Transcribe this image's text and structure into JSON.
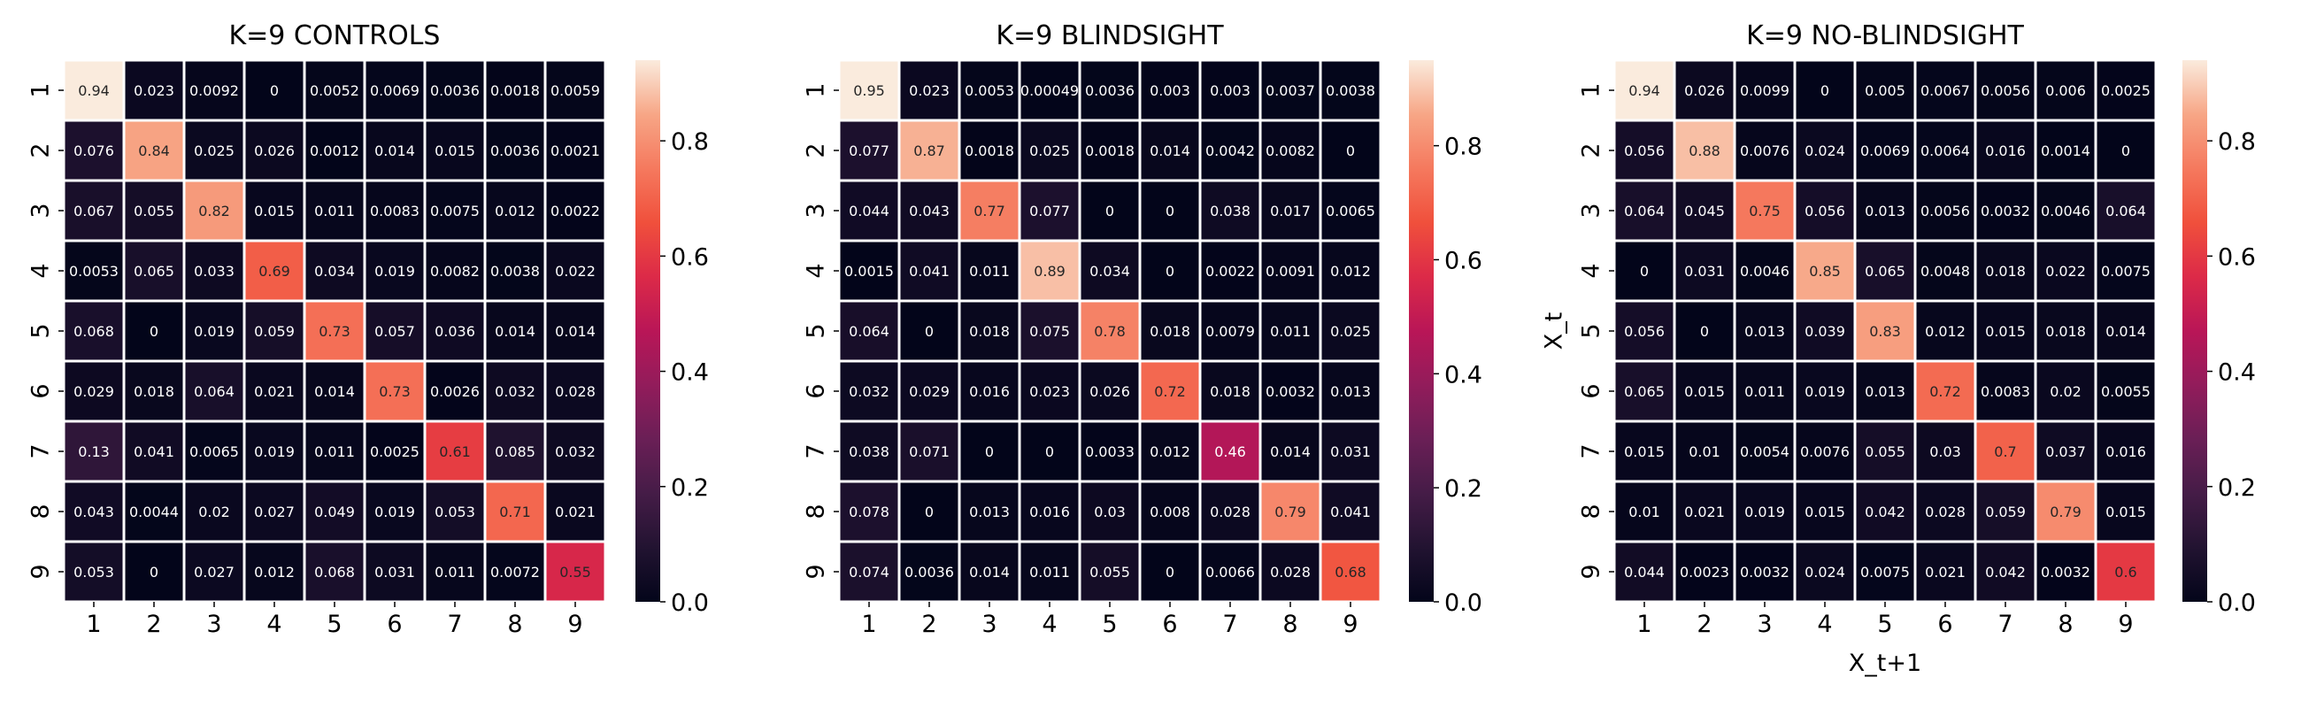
{
  "figure": {
    "background": "#ffffff",
    "colormap": "rocket"
  },
  "chart_data": [
    {
      "type": "heatmap",
      "title": "K=9 CONTROLS",
      "xlabel": "",
      "ylabel": "",
      "x_categories": [
        "1",
        "2",
        "3",
        "4",
        "5",
        "6",
        "7",
        "8",
        "9"
      ],
      "y_categories": [
        "1",
        "2",
        "3",
        "4",
        "5",
        "6",
        "7",
        "8",
        "9"
      ],
      "values": [
        [
          "0.94",
          "0.023",
          "0.0092",
          "0",
          "0.0052",
          "0.0069",
          "0.0036",
          "0.0018",
          "0.0059"
        ],
        [
          "0.076",
          "0.84",
          "0.025",
          "0.026",
          "0.0012",
          "0.014",
          "0.015",
          "0.0036",
          "0.0021"
        ],
        [
          "0.067",
          "0.055",
          "0.82",
          "0.015",
          "0.011",
          "0.0083",
          "0.0075",
          "0.012",
          "0.0022"
        ],
        [
          "0.0053",
          "0.065",
          "0.033",
          "0.69",
          "0.034",
          "0.019",
          "0.0082",
          "0.0038",
          "0.022"
        ],
        [
          "0.068",
          "0",
          "0.019",
          "0.059",
          "0.73",
          "0.057",
          "0.036",
          "0.014",
          "0.014"
        ],
        [
          "0.029",
          "0.018",
          "0.064",
          "0.021",
          "0.014",
          "0.73",
          "0.0026",
          "0.032",
          "0.028"
        ],
        [
          "0.13",
          "0.041",
          "0.0065",
          "0.019",
          "0.011",
          "0.0025",
          "0.61",
          "0.085",
          "0.032"
        ],
        [
          "0.043",
          "0.0044",
          "0.02",
          "0.027",
          "0.049",
          "0.019",
          "0.053",
          "0.71",
          "0.021"
        ],
        [
          "0.053",
          "0",
          "0.027",
          "0.012",
          "0.068",
          "0.031",
          "0.011",
          "0.0072",
          "0.55"
        ]
      ],
      "colorbar": {
        "ticks": [
          "0.0",
          "0.2",
          "0.4",
          "0.6",
          "0.8"
        ],
        "range": [
          0,
          0.94
        ]
      },
      "grid": true
    },
    {
      "type": "heatmap",
      "title": "K=9 BLINDSIGHT",
      "xlabel": "",
      "ylabel": "",
      "x_categories": [
        "1",
        "2",
        "3",
        "4",
        "5",
        "6",
        "7",
        "8",
        "9"
      ],
      "y_categories": [
        "1",
        "2",
        "3",
        "4",
        "5",
        "6",
        "7",
        "8",
        "9"
      ],
      "values": [
        [
          "0.95",
          "0.023",
          "0.0053",
          "0.00049",
          "0.0036",
          "0.003",
          "0.003",
          "0.0037",
          "0.0038"
        ],
        [
          "0.077",
          "0.87",
          "0.0018",
          "0.025",
          "0.0018",
          "0.014",
          "0.0042",
          "0.0082",
          "0"
        ],
        [
          "0.044",
          "0.043",
          "0.77",
          "0.077",
          "0",
          "0",
          "0.038",
          "0.017",
          "0.0065"
        ],
        [
          "0.0015",
          "0.041",
          "0.011",
          "0.89",
          "0.034",
          "0",
          "0.0022",
          "0.0091",
          "0.012"
        ],
        [
          "0.064",
          "0",
          "0.018",
          "0.075",
          "0.78",
          "0.018",
          "0.0079",
          "0.011",
          "0.025"
        ],
        [
          "0.032",
          "0.029",
          "0.016",
          "0.023",
          "0.026",
          "0.72",
          "0.018",
          "0.0032",
          "0.013"
        ],
        [
          "0.038",
          "0.071",
          "0",
          "0",
          "0.0033",
          "0.012",
          "0.46",
          "0.014",
          "0.031"
        ],
        [
          "0.078",
          "0",
          "0.013",
          "0.016",
          "0.03",
          "0.008",
          "0.028",
          "0.79",
          "0.041"
        ],
        [
          "0.074",
          "0.0036",
          "0.014",
          "0.011",
          "0.055",
          "0",
          "0.0066",
          "0.028",
          "0.68"
        ]
      ],
      "colorbar": {
        "ticks": [
          "0.0",
          "0.2",
          "0.4",
          "0.6",
          "0.8"
        ],
        "range": [
          0,
          0.95
        ]
      },
      "grid": true
    },
    {
      "type": "heatmap",
      "title": "K=9 NO-BLINDSIGHT",
      "xlabel": "X_t+1",
      "ylabel": "X_t",
      "x_categories": [
        "1",
        "2",
        "3",
        "4",
        "5",
        "6",
        "7",
        "8",
        "9"
      ],
      "y_categories": [
        "1",
        "2",
        "3",
        "4",
        "5",
        "6",
        "7",
        "8",
        "9"
      ],
      "values": [
        [
          "0.94",
          "0.026",
          "0.0099",
          "0",
          "0.005",
          "0.0067",
          "0.0056",
          "0.006",
          "0.0025"
        ],
        [
          "0.056",
          "0.88",
          "0.0076",
          "0.024",
          "0.0069",
          "0.0064",
          "0.016",
          "0.0014",
          "0"
        ],
        [
          "0.064",
          "0.045",
          "0.75",
          "0.056",
          "0.013",
          "0.0056",
          "0.0032",
          "0.0046",
          "0.064"
        ],
        [
          "0",
          "0.031",
          "0.0046",
          "0.85",
          "0.065",
          "0.0048",
          "0.018",
          "0.022",
          "0.0075"
        ],
        [
          "0.056",
          "0",
          "0.013",
          "0.039",
          "0.83",
          "0.012",
          "0.015",
          "0.018",
          "0.014"
        ],
        [
          "0.065",
          "0.015",
          "0.011",
          "0.019",
          "0.013",
          "0.72",
          "0.0083",
          "0.02",
          "0.0055"
        ],
        [
          "0.015",
          "0.01",
          "0.0054",
          "0.0076",
          "0.055",
          "0.03",
          "0.7",
          "0.037",
          "0.016"
        ],
        [
          "0.01",
          "0.021",
          "0.019",
          "0.015",
          "0.042",
          "0.028",
          "0.059",
          "0.79",
          "0.015"
        ],
        [
          "0.044",
          "0.0023",
          "0.0032",
          "0.024",
          "0.0075",
          "0.021",
          "0.042",
          "0.0032",
          "0.6"
        ]
      ],
      "colorbar": {
        "ticks": [
          "0.0",
          "0.2",
          "0.4",
          "0.6",
          "0.8"
        ],
        "range": [
          0,
          0.94
        ]
      },
      "grid": true
    }
  ]
}
